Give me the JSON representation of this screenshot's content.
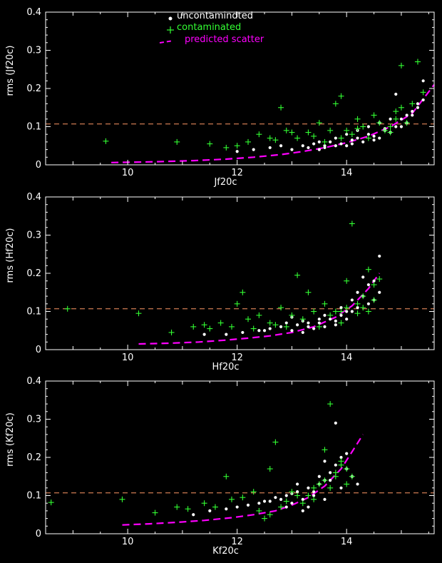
{
  "colors": {
    "background": "#000000",
    "axes": "#ffffff",
    "uncontaminated": "#ffffff",
    "contaminated": "#33ff33",
    "predicted": "#ff00ff",
    "threshold": "#ff9966"
  },
  "legend": {
    "uncontaminated": "uncontamindted",
    "contaminated": "contaminated",
    "predicted": "predicted scatter"
  },
  "chart_data": [
    {
      "type": "scatter",
      "title": "",
      "xlabel": "Jf20c",
      "ylabel": "rms (Jf20c)",
      "xlim": [
        8.5,
        15.6
      ],
      "ylim": [
        0,
        0.4
      ],
      "xticks": [
        10,
        12,
        14
      ],
      "yticks": [
        0,
        0.1,
        0.2,
        0.3,
        0.4
      ],
      "threshold": 0.107,
      "legend_position": "top-center",
      "predicted": {
        "x": [
          9.7,
          10.5,
          11.2,
          11.8,
          12.3,
          12.8,
          13.2,
          13.6,
          14.0,
          14.4,
          14.8,
          15.2,
          15.6
        ],
        "y": [
          0.006,
          0.008,
          0.011,
          0.015,
          0.02,
          0.027,
          0.035,
          0.045,
          0.058,
          0.075,
          0.1,
          0.135,
          0.21
        ]
      },
      "contaminated": {
        "x": [
          9.6,
          10.9,
          11.5,
          11.8,
          12.0,
          12.4,
          12.6,
          12.8,
          12.9,
          13.1,
          13.3,
          13.5,
          13.7,
          13.8,
          13.9,
          14.1,
          14.2,
          14.3,
          14.5,
          14.7,
          14.8,
          14.9,
          15.0,
          15.1,
          15.2,
          15.3,
          12.2,
          12.7,
          13.0,
          13.4,
          13.6,
          14.0,
          14.4,
          14.6,
          14.9,
          15.0,
          15.4,
          13.9,
          14.2,
          14.8
        ],
        "y": [
          0.062,
          0.06,
          0.055,
          0.045,
          0.05,
          0.08,
          0.07,
          0.15,
          0.09,
          0.07,
          0.085,
          0.11,
          0.09,
          0.16,
          0.18,
          0.08,
          0.12,
          0.1,
          0.13,
          0.09,
          0.1,
          0.12,
          0.26,
          0.11,
          0.16,
          0.27,
          0.06,
          0.065,
          0.085,
          0.075,
          0.06,
          0.09,
          0.07,
          0.11,
          0.14,
          0.15,
          0.19,
          0.07,
          0.095,
          0.085
        ]
      },
      "uncontaminated": {
        "x": [
          12.0,
          12.3,
          12.6,
          12.8,
          13.0,
          13.2,
          13.3,
          13.4,
          13.5,
          13.6,
          13.7,
          13.8,
          13.9,
          14.0,
          14.1,
          14.2,
          14.3,
          14.4,
          14.5,
          14.6,
          14.7,
          14.8,
          14.9,
          15.0,
          15.1,
          15.2,
          15.3,
          15.4,
          13.5,
          13.8,
          14.0,
          14.2,
          14.4,
          14.6,
          14.8,
          15.0,
          15.2,
          15.4,
          14.5,
          14.7,
          14.9,
          15.1,
          15.3,
          13.6,
          14.1
        ],
        "y": [
          0.035,
          0.04,
          0.045,
          0.05,
          0.04,
          0.05,
          0.045,
          0.055,
          0.04,
          0.05,
          0.06,
          0.05,
          0.055,
          0.05,
          0.065,
          0.07,
          0.06,
          0.08,
          0.075,
          0.07,
          0.09,
          0.085,
          0.1,
          0.12,
          0.11,
          0.13,
          0.15,
          0.22,
          0.06,
          0.07,
          0.08,
          0.09,
          0.1,
          0.11,
          0.12,
          0.1,
          0.14,
          0.17,
          0.065,
          0.095,
          0.185,
          0.13,
          0.16,
          0.045,
          0.055
        ]
      }
    },
    {
      "type": "scatter",
      "title": "",
      "xlabel": "Hf20c",
      "ylabel": "rms (Hf20c)",
      "xlim": [
        8.5,
        15.6
      ],
      "ylim": [
        0,
        0.4
      ],
      "xticks": [
        10,
        12,
        14
      ],
      "yticks": [
        0,
        0.1,
        0.2,
        0.3,
        0.4
      ],
      "threshold": 0.107,
      "predicted": {
        "x": [
          10.2,
          10.8,
          11.3,
          11.8,
          12.2,
          12.6,
          13.0,
          13.4,
          13.8,
          14.1,
          14.4,
          14.6
        ],
        "y": [
          0.015,
          0.017,
          0.02,
          0.025,
          0.03,
          0.036,
          0.045,
          0.06,
          0.085,
          0.115,
          0.16,
          0.2
        ]
      },
      "contaminated": {
        "x": [
          8.9,
          10.2,
          10.8,
          11.2,
          11.4,
          11.7,
          11.9,
          12.1,
          12.2,
          12.4,
          12.6,
          12.8,
          13.0,
          13.1,
          13.3,
          13.4,
          13.6,
          13.7,
          13.9,
          14.0,
          14.1,
          14.2,
          14.3,
          14.4,
          14.5,
          14.6,
          12.0,
          12.3,
          12.9,
          13.5,
          13.8,
          14.0,
          14.2,
          14.4,
          11.5,
          12.7,
          13.2,
          13.9,
          14.3,
          14.5
        ],
        "y": [
          0.107,
          0.095,
          0.045,
          0.06,
          0.065,
          0.07,
          0.06,
          0.15,
          0.08,
          0.09,
          0.07,
          0.11,
          0.09,
          0.195,
          0.15,
          0.1,
          0.12,
          0.09,
          0.1,
          0.18,
          0.33,
          0.12,
          0.14,
          0.21,
          0.17,
          0.185,
          0.12,
          0.055,
          0.06,
          0.06,
          0.1,
          0.11,
          0.095,
          0.1,
          0.055,
          0.065,
          0.08,
          0.07,
          0.11,
          0.13
        ]
      },
      "uncontaminated": {
        "x": [
          11.4,
          11.8,
          12.1,
          12.4,
          12.6,
          12.8,
          13.0,
          13.1,
          13.2,
          13.3,
          13.4,
          13.5,
          13.6,
          13.7,
          13.8,
          13.9,
          14.0,
          14.1,
          14.2,
          14.3,
          14.4,
          14.5,
          14.6,
          12.9,
          13.2,
          13.5,
          13.8,
          14.0,
          14.2,
          14.4,
          14.5,
          14.6,
          13.0,
          13.6,
          14.1,
          14.3,
          12.5,
          13.3,
          13.9
        ],
        "y": [
          0.04,
          0.04,
          0.045,
          0.05,
          0.055,
          0.06,
          0.05,
          0.065,
          0.045,
          0.06,
          0.055,
          0.07,
          0.06,
          0.08,
          0.075,
          0.09,
          0.08,
          0.1,
          0.11,
          0.14,
          0.17,
          0.18,
          0.245,
          0.07,
          0.075,
          0.08,
          0.065,
          0.1,
          0.15,
          0.12,
          0.13,
          0.15,
          0.085,
          0.09,
          0.13,
          0.19,
          0.05,
          0.07,
          0.11
        ]
      }
    },
    {
      "type": "scatter",
      "title": "",
      "xlabel": "Kf20c",
      "ylabel": "rms (Kf20c)",
      "xlim": [
        8.5,
        15.6
      ],
      "ylim": [
        0,
        0.4
      ],
      "xticks": [
        10,
        12,
        14
      ],
      "yticks": [
        0,
        0.1,
        0.2,
        0.3,
        0.4
      ],
      "threshold": 0.107,
      "predicted": {
        "x": [
          9.9,
          10.4,
          10.9,
          11.4,
          11.9,
          12.3,
          12.7,
          13.0,
          13.3,
          13.6,
          13.9,
          14.1,
          14.3
        ],
        "y": [
          0.023,
          0.026,
          0.03,
          0.035,
          0.042,
          0.05,
          0.06,
          0.075,
          0.095,
          0.125,
          0.17,
          0.215,
          0.26
        ]
      },
      "contaminated": {
        "x": [
          8.6,
          9.9,
          10.5,
          10.9,
          11.1,
          11.4,
          11.6,
          11.8,
          11.9,
          12.1,
          12.3,
          12.5,
          12.6,
          12.7,
          12.9,
          13.1,
          13.2,
          13.4,
          13.5,
          13.6,
          13.7,
          13.8,
          13.9,
          14.0,
          14.1,
          12.4,
          12.8,
          13.0,
          13.3,
          13.6,
          13.8,
          13.9,
          12.6,
          13.4,
          13.7,
          14.0
        ],
        "y": [
          0.082,
          0.09,
          0.055,
          0.07,
          0.065,
          0.08,
          0.07,
          0.15,
          0.09,
          0.095,
          0.11,
          0.04,
          0.17,
          0.24,
          0.085,
          0.1,
          0.08,
          0.12,
          0.13,
          0.22,
          0.34,
          0.15,
          0.19,
          0.17,
          0.15,
          0.06,
          0.07,
          0.11,
          0.1,
          0.14,
          0.16,
          0.18,
          0.05,
          0.09,
          0.12,
          0.13
        ]
      },
      "uncontaminated": {
        "x": [
          11.2,
          11.5,
          11.8,
          12.0,
          12.2,
          12.4,
          12.6,
          12.8,
          12.9,
          13.0,
          13.1,
          13.2,
          13.3,
          13.4,
          13.5,
          13.6,
          13.7,
          13.8,
          13.9,
          14.0,
          14.1,
          14.2,
          12.7,
          13.0,
          13.3,
          13.6,
          13.9,
          13.8,
          13.5,
          13.2,
          12.5,
          13.1,
          13.4,
          13.7,
          14.0,
          12.9,
          13.6
        ],
        "y": [
          0.05,
          0.06,
          0.065,
          0.07,
          0.075,
          0.08,
          0.085,
          0.09,
          0.1,
          0.08,
          0.11,
          0.09,
          0.12,
          0.1,
          0.13,
          0.14,
          0.16,
          0.18,
          0.2,
          0.17,
          0.15,
          0.13,
          0.095,
          0.105,
          0.07,
          0.09,
          0.12,
          0.29,
          0.15,
          0.06,
          0.085,
          0.13,
          0.11,
          0.14,
          0.21,
          0.07,
          0.19
        ]
      }
    }
  ]
}
